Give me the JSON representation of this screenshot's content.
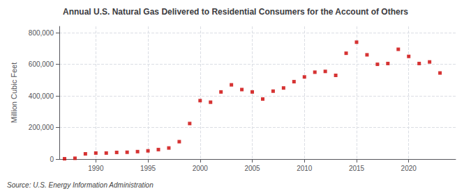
{
  "chart_data": {
    "type": "scatter",
    "title": "Annual U.S. Natural Gas Delivered to Residential Consumers for the Account of Others",
    "ylabel": "Million Cubic Feet",
    "annotations": [
      "Source: U.S. Energy Information Administration"
    ],
    "x": [
      1987,
      1988,
      1989,
      1990,
      1991,
      1992,
      1993,
      1994,
      1995,
      1996,
      1997,
      1998,
      1999,
      2000,
      2001,
      2002,
      2003,
      2004,
      2005,
      2006,
      2007,
      2008,
      2009,
      2010,
      2011,
      2012,
      2013,
      2014,
      2015,
      2016,
      2017,
      2018,
      2019,
      2020,
      2021,
      2022,
      2023
    ],
    "values": [
      2000,
      5000,
      33000,
      38000,
      38000,
      42000,
      43000,
      47000,
      52000,
      60000,
      70000,
      110000,
      225000,
      370000,
      360000,
      425000,
      470000,
      440000,
      425000,
      380000,
      430000,
      450000,
      490000,
      520000,
      550000,
      555000,
      530000,
      670000,
      740000,
      660000,
      600000,
      605000,
      695000,
      650000,
      605000,
      615000,
      545000
    ],
    "color": "#cc0000",
    "marker": "square",
    "xlim": [
      1986.5,
      2024.5
    ],
    "xticks": [
      1990,
      1995,
      2000,
      2005,
      2010,
      2015,
      2020
    ],
    "ylim": [
      0,
      840000
    ],
    "yticks": [
      0,
      {
        "value": 200000,
        "label": "200,000"
      },
      {
        "value": 400000,
        "label": "400,000"
      },
      {
        "value": 600000,
        "label": "600,000"
      },
      {
        "value": 800000,
        "label": "800,000"
      }
    ],
    "grid": true
  }
}
